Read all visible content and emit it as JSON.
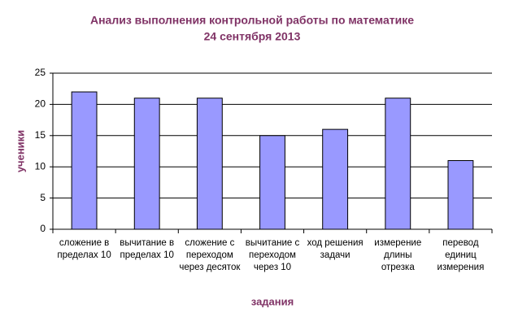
{
  "chart_data": {
    "type": "bar",
    "title": "Анализ выполнения контрольной работы по математике",
    "subtitle": "24 сентября 2013",
    "y_label": "ученики",
    "x_label": "задания",
    "categories": [
      "сложение в пределах 10",
      "вычитание в пределах 10",
      "сложение с переходом через десяток",
      "вычитание с переходом через 10",
      "ход решения задачи",
      "измерение длины отрезка",
      "перевод единиц измерения"
    ],
    "values": [
      22,
      21,
      21,
      15,
      16,
      21,
      11
    ],
    "color": "#9999ff",
    "ylim": [
      0,
      25
    ],
    "yticks": [
      0,
      5,
      10,
      15,
      20,
      25
    ],
    "grid": true
  }
}
